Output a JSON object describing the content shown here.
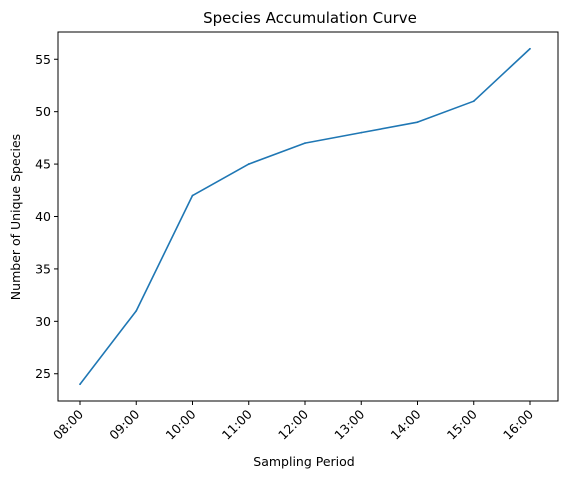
{
  "chart_data": {
    "type": "line",
    "title": "Species Accumulation Curve",
    "xlabel": "Sampling Period",
    "ylabel": "Number of Unique Species",
    "categories": [
      "08:00",
      "09:00",
      "10:00",
      "11:00",
      "12:00",
      "13:00",
      "14:00",
      "15:00",
      "16:00"
    ],
    "series": [
      {
        "values": [
          24,
          31,
          42,
          45,
          47,
          48,
          49,
          51,
          56
        ],
        "color": "#1f77b4"
      }
    ],
    "yticks": [
      25,
      30,
      35,
      40,
      45,
      50,
      55
    ],
    "ylim": [
      22.4,
      57.6
    ],
    "grid": false,
    "legend": "none"
  }
}
